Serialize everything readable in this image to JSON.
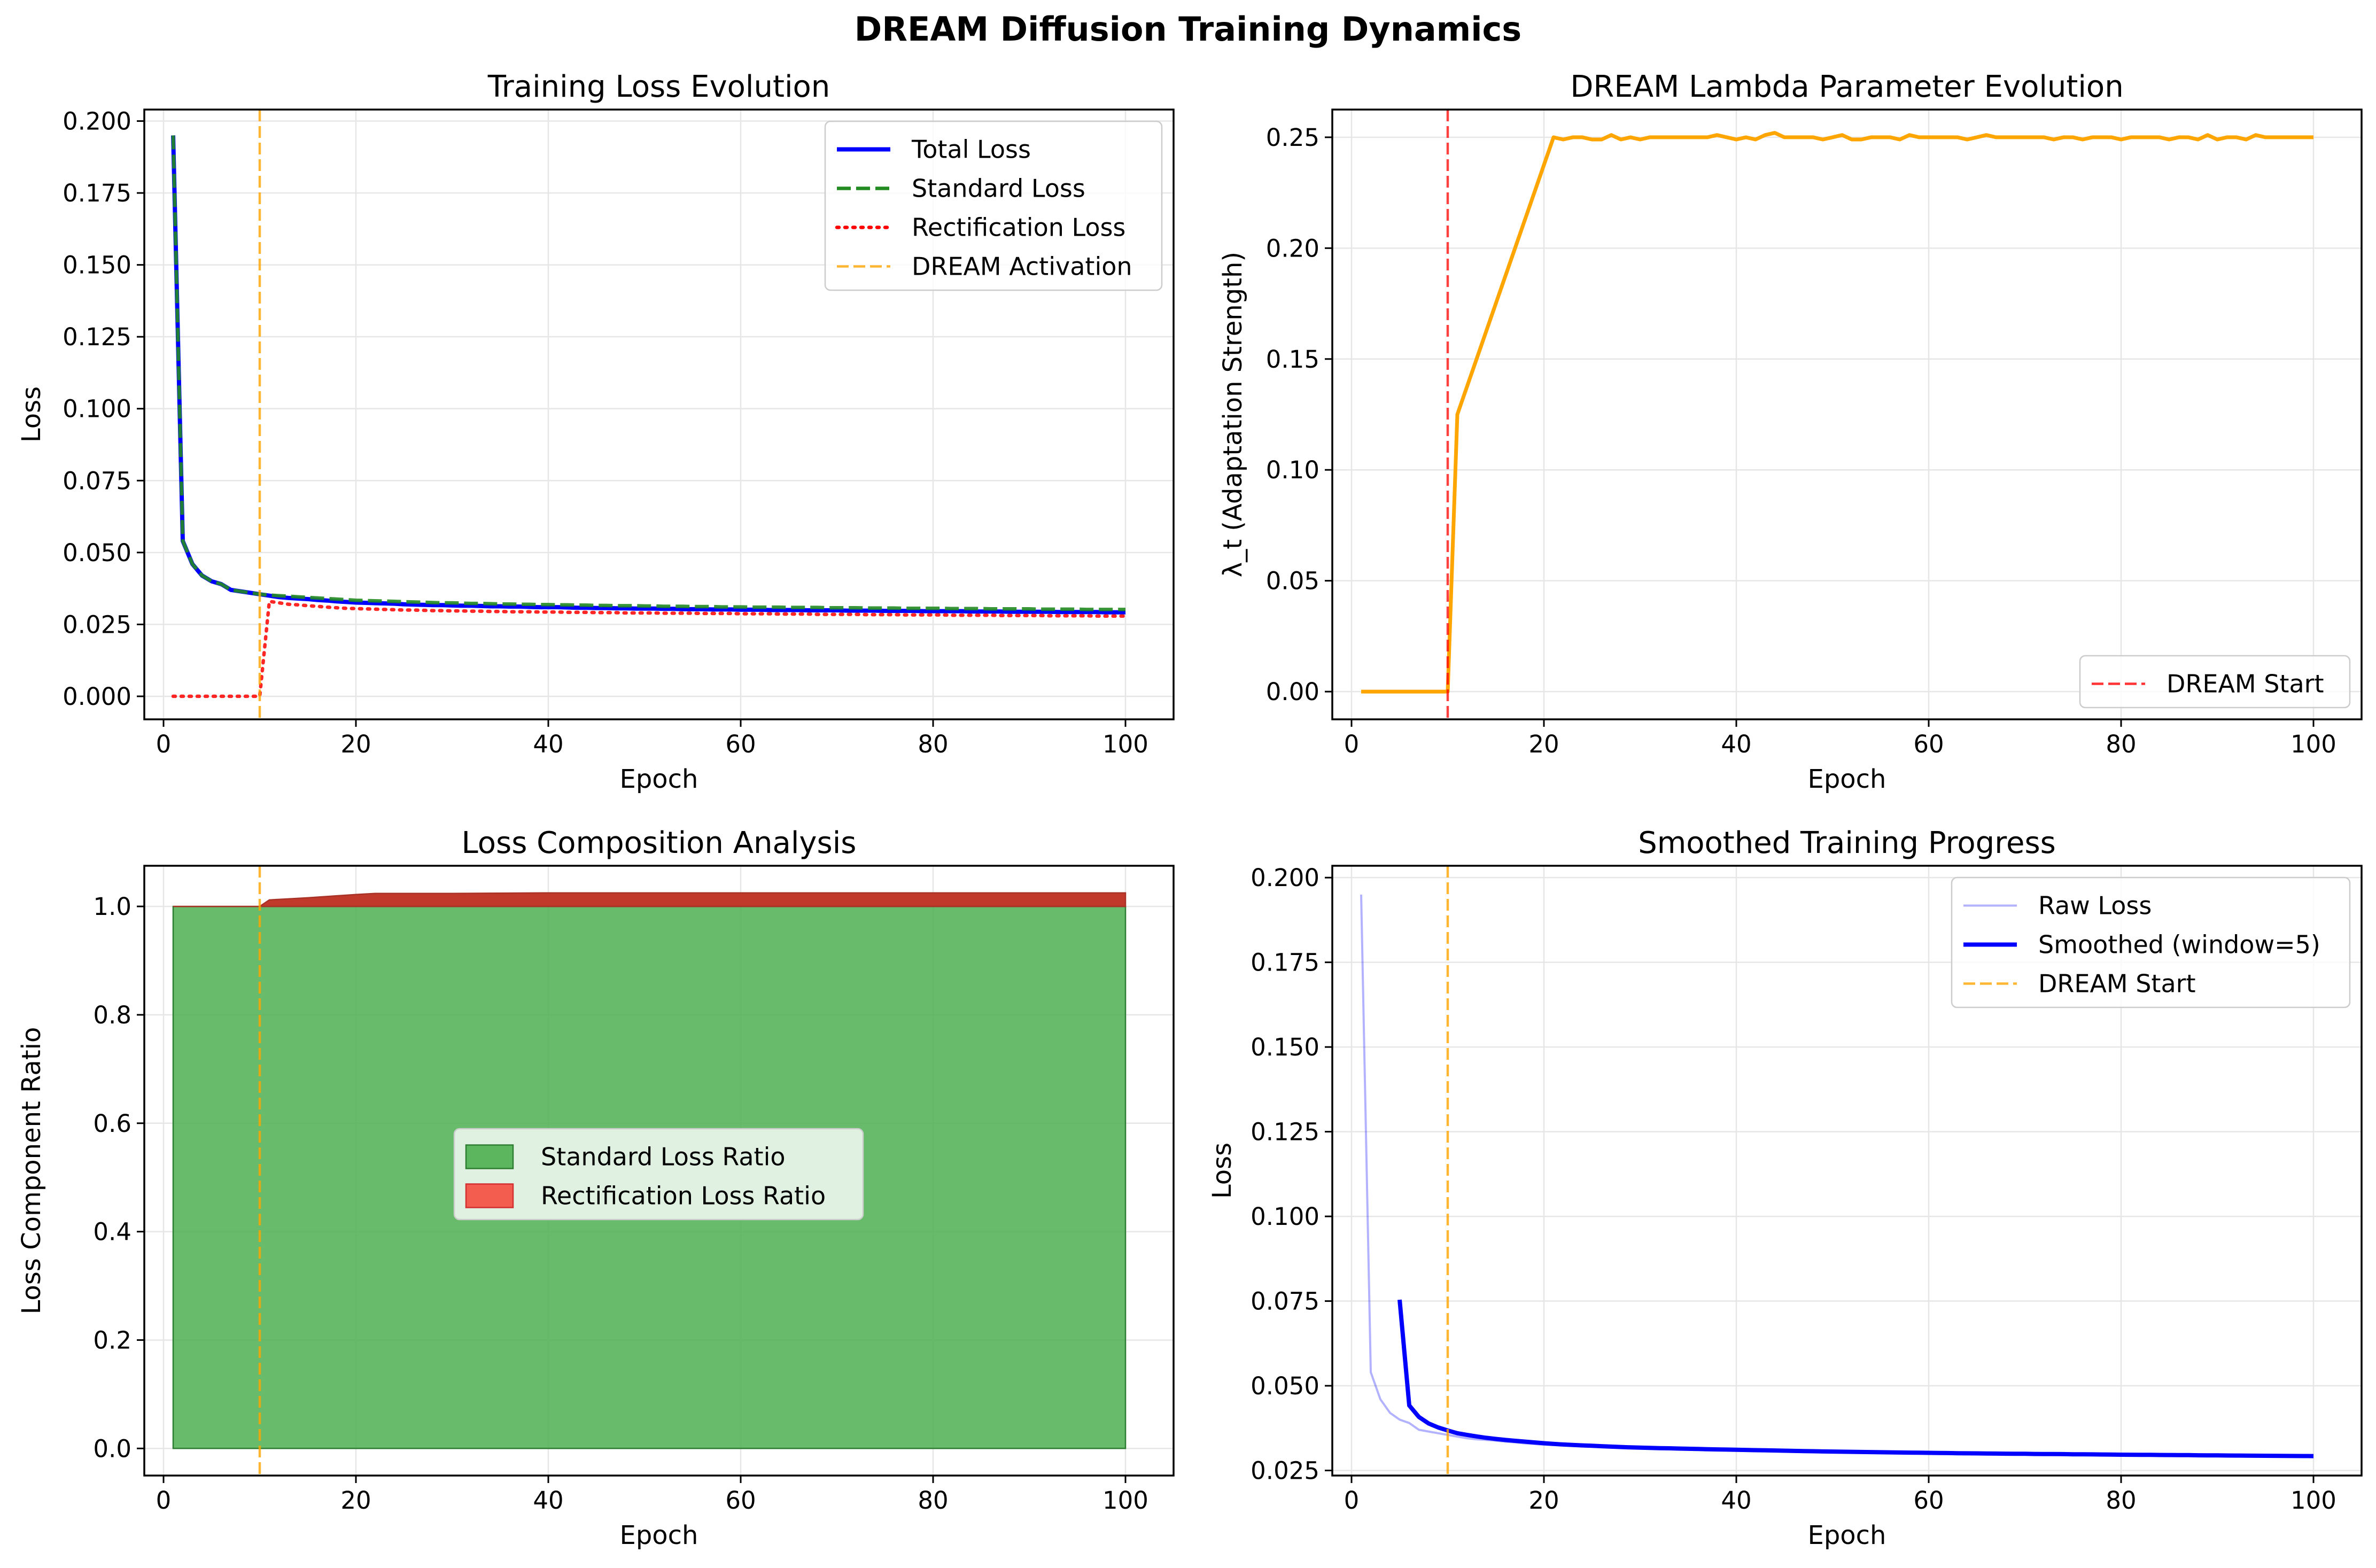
{
  "suptitle": "DREAM Diffusion Training Dynamics",
  "chart_data": [
    {
      "type": "line",
      "title": "Training Loss Evolution",
      "xlabel": "Epoch",
      "ylabel": "Loss",
      "xlim": [
        -2,
        105
      ],
      "ylim": [
        -0.008,
        0.204
      ],
      "xticks": [
        0,
        20,
        40,
        60,
        80,
        100
      ],
      "yticks": [
        0.0,
        0.025,
        0.05,
        0.075,
        0.1,
        0.125,
        0.15,
        0.175,
        0.2
      ],
      "ytick_labels": [
        "0.000",
        "0.025",
        "0.050",
        "0.075",
        "0.100",
        "0.125",
        "0.150",
        "0.175",
        "0.200"
      ],
      "grid": true,
      "legend_position": "top-right",
      "series": [
        {
          "name": "Total Loss",
          "color": "#0000ff",
          "style": "solid",
          "x_start": 1,
          "x_step": 1,
          "values": [
            0.195,
            0.054,
            0.046,
            0.042,
            0.04,
            0.039,
            0.037,
            0.0365,
            0.036,
            0.0355,
            0.035,
            0.0345,
            0.0342,
            0.034,
            0.0338,
            0.0335,
            0.0333,
            0.033,
            0.0328,
            0.0326,
            0.0325,
            0.0324,
            0.0323,
            0.0322,
            0.032,
            0.0319,
            0.0318,
            0.0317,
            0.0317,
            0.0316,
            0.0315,
            0.0315,
            0.0314,
            0.0313,
            0.0313,
            0.0312,
            0.0312,
            0.0311,
            0.031,
            0.031,
            0.031,
            0.0309,
            0.0308,
            0.0308,
            0.0307,
            0.0307,
            0.0306,
            0.0306,
            0.0305,
            0.0305,
            0.0305,
            0.0304,
            0.0304,
            0.0303,
            0.0303,
            0.0303,
            0.0302,
            0.0302,
            0.0302,
            0.0301,
            0.0301,
            0.0301,
            0.03,
            0.03,
            0.03,
            0.03,
            0.0299,
            0.0299,
            0.0299,
            0.0299,
            0.0298,
            0.0298,
            0.0298,
            0.0298,
            0.0297,
            0.0297,
            0.0297,
            0.0297,
            0.0296,
            0.0296,
            0.0296,
            0.0296,
            0.0296,
            0.0295,
            0.0295,
            0.0295,
            0.0295,
            0.0294,
            0.0294,
            0.0294,
            0.0294,
            0.0294,
            0.0293,
            0.0293,
            0.0293,
            0.0293,
            0.0293,
            0.0292,
            0.0292,
            0.0292
          ]
        },
        {
          "name": "Standard Loss",
          "color": "#228b22",
          "style": "dashed",
          "x_start": 1,
          "x_step": 1,
          "values": [
            0.195,
            0.054,
            0.046,
            0.042,
            0.04,
            0.039,
            0.037,
            0.0365,
            0.036,
            0.0355,
            0.0352,
            0.035,
            0.0348,
            0.0346,
            0.0344,
            0.0342,
            0.034,
            0.0338,
            0.0336,
            0.0334,
            0.0333,
            0.0332,
            0.0331,
            0.033,
            0.0329,
            0.0328,
            0.0327,
            0.0326,
            0.0325,
            0.0325,
            0.0324,
            0.0323,
            0.0323,
            0.0322,
            0.0321,
            0.0321,
            0.032,
            0.032,
            0.0319,
            0.0319,
            0.0318,
            0.0318,
            0.0317,
            0.0317,
            0.0316,
            0.0316,
            0.0315,
            0.0315,
            0.0315,
            0.0314,
            0.0314,
            0.0313,
            0.0313,
            0.0313,
            0.0312,
            0.0312,
            0.0312,
            0.0311,
            0.0311,
            0.0311,
            0.031,
            0.031,
            0.031,
            0.031,
            0.0309,
            0.0309,
            0.0309,
            0.0309,
            0.0308,
            0.0308,
            0.0308,
            0.0308,
            0.0307,
            0.0307,
            0.0307,
            0.0307,
            0.0306,
            0.0306,
            0.0306,
            0.0306,
            0.0306,
            0.0305,
            0.0305,
            0.0305,
            0.0305,
            0.0304,
            0.0304,
            0.0304,
            0.0304,
            0.0304,
            0.0303,
            0.0303,
            0.0303,
            0.0303,
            0.0303,
            0.0302,
            0.0302,
            0.0302,
            0.0302,
            0.0302
          ]
        },
        {
          "name": "Rectification Loss",
          "color": "#ff0000",
          "style": "dotted",
          "x_start": 1,
          "x_step": 1,
          "values": [
            0,
            0,
            0,
            0,
            0,
            0,
            0,
            0,
            0,
            0,
            0.033,
            0.0325,
            0.032,
            0.0318,
            0.0315,
            0.0313,
            0.031,
            0.0308,
            0.0306,
            0.0305,
            0.0304,
            0.0303,
            0.0302,
            0.0301,
            0.03,
            0.03,
            0.0299,
            0.0298,
            0.0298,
            0.0297,
            0.0297,
            0.0296,
            0.0296,
            0.0295,
            0.0295,
            0.0294,
            0.0294,
            0.0294,
            0.0293,
            0.0293,
            0.0293,
            0.0292,
            0.0292,
            0.0292,
            0.0291,
            0.0291,
            0.0291,
            0.029,
            0.029,
            0.029,
            0.029,
            0.0289,
            0.0289,
            0.0289,
            0.0289,
            0.0288,
            0.0288,
            0.0288,
            0.0288,
            0.0287,
            0.0287,
            0.0287,
            0.0287,
            0.0286,
            0.0286,
            0.0286,
            0.0286,
            0.0285,
            0.0285,
            0.0285,
            0.0285,
            0.0285,
            0.0284,
            0.0284,
            0.0284,
            0.0284,
            0.0283,
            0.0283,
            0.0283,
            0.0283,
            0.0283,
            0.0282,
            0.0282,
            0.0282,
            0.0282,
            0.0282,
            0.0281,
            0.0281,
            0.0281,
            0.0281,
            0.0281,
            0.028,
            0.028,
            0.028,
            0.028,
            0.028,
            0.0279,
            0.0279,
            0.0279,
            0.0279
          ]
        },
        {
          "name": "DREAM Activation",
          "color": "#ffa500",
          "style": "vline",
          "x": 10
        }
      ]
    },
    {
      "type": "line",
      "title": "DREAM Lambda Parameter Evolution",
      "xlabel": "Epoch",
      "ylabel": "λ_t (Adaptation Strength)",
      "xlim": [
        -2,
        105
      ],
      "ylim": [
        -0.0125,
        0.2625
      ],
      "xticks": [
        0,
        20,
        40,
        60,
        80,
        100
      ],
      "yticks": [
        0.0,
        0.05,
        0.1,
        0.15,
        0.2,
        0.25
      ],
      "ytick_labels": [
        "0.00",
        "0.05",
        "0.10",
        "0.15",
        "0.20",
        "0.25"
      ],
      "grid": true,
      "legend_position": "bottom-right",
      "series": [
        {
          "name": "",
          "color": "#ffa500",
          "style": "solid",
          "x_start": 1,
          "x_step": 1,
          "values": [
            0,
            0,
            0,
            0,
            0,
            0,
            0,
            0,
            0,
            0,
            0.125,
            0.1375,
            0.15,
            0.1625,
            0.175,
            0.1875,
            0.2,
            0.2125,
            0.225,
            0.2375,
            0.25,
            0.249,
            0.25,
            0.25,
            0.249,
            0.249,
            0.251,
            0.249,
            0.25,
            0.249,
            0.25,
            0.25,
            0.25,
            0.25,
            0.25,
            0.25,
            0.25,
            0.251,
            0.25,
            0.249,
            0.25,
            0.249,
            0.251,
            0.252,
            0.25,
            0.25,
            0.25,
            0.25,
            0.249,
            0.25,
            0.251,
            0.249,
            0.249,
            0.25,
            0.25,
            0.25,
            0.249,
            0.251,
            0.25,
            0.25,
            0.25,
            0.25,
            0.25,
            0.249,
            0.25,
            0.251,
            0.25,
            0.25,
            0.25,
            0.25,
            0.25,
            0.25,
            0.249,
            0.25,
            0.25,
            0.249,
            0.25,
            0.25,
            0.25,
            0.249,
            0.25,
            0.25,
            0.25,
            0.25,
            0.249,
            0.25,
            0.25,
            0.249,
            0.251,
            0.249,
            0.25,
            0.25,
            0.249,
            0.251,
            0.25,
            0.25,
            0.25,
            0.25,
            0.25,
            0.25
          ]
        },
        {
          "name": "DREAM Start",
          "color": "#ff0000",
          "style": "vline",
          "x": 10
        }
      ]
    },
    {
      "type": "area",
      "title": "Loss Composition Analysis",
      "xlabel": "Epoch",
      "ylabel": "Loss Component Ratio",
      "xlim": [
        -2,
        105
      ],
      "ylim": [
        -0.05,
        1.075
      ],
      "xticks": [
        0,
        20,
        40,
        60,
        80,
        100
      ],
      "yticks": [
        0.0,
        0.2,
        0.4,
        0.6,
        0.8,
        1.0
      ],
      "ytick_labels": [
        "0.0",
        "0.2",
        "0.4",
        "0.6",
        "0.8",
        "1.0"
      ],
      "grid": true,
      "legend_position": "center",
      "x_range": [
        1,
        100
      ],
      "series": [
        {
          "name": "Standard Loss Ratio",
          "color": "#4caf50",
          "x": [
            1,
            100
          ],
          "values": [
            1.0,
            1.0
          ]
        },
        {
          "name": "Rectification Loss Ratio",
          "color": "#f44336",
          "x": [
            1,
            10,
            11,
            15,
            20,
            22,
            30,
            40,
            60,
            80,
            100
          ],
          "values": [
            0,
            0,
            0.012,
            0.016,
            0.022,
            0.024,
            0.024,
            0.025,
            0.025,
            0.025,
            0.025
          ]
        },
        {
          "name": "",
          "color": "#ffa500",
          "style": "vline",
          "x": 10
        }
      ]
    },
    {
      "type": "line",
      "title": "Smoothed Training Progress",
      "xlabel": "Epoch",
      "ylabel": "Loss",
      "xlim": [
        -2,
        105
      ],
      "ylim": [
        0.0235,
        0.2035
      ],
      "xticks": [
        0,
        20,
        40,
        60,
        80,
        100
      ],
      "yticks": [
        0.025,
        0.05,
        0.075,
        0.1,
        0.125,
        0.15,
        0.175,
        0.2
      ],
      "ytick_labels": [
        "0.025",
        "0.050",
        "0.075",
        "0.100",
        "0.125",
        "0.150",
        "0.175",
        "0.200"
      ],
      "grid": true,
      "legend_position": "top-right",
      "series": [
        {
          "name": "Raw Loss",
          "color": "#0000ff",
          "style": "raw",
          "x_start": 1,
          "x_step": 1,
          "ref": "chart_data.0.series.0"
        },
        {
          "name": "Smoothed (window=5)",
          "color": "#0000ff",
          "style": "solid",
          "x_start": 5,
          "x_step": 1,
          "smooth_window": 5,
          "ref": "chart_data.0.series.0"
        },
        {
          "name": "DREAM Start",
          "color": "#ffa500",
          "style": "vline",
          "x": 10
        }
      ]
    }
  ]
}
